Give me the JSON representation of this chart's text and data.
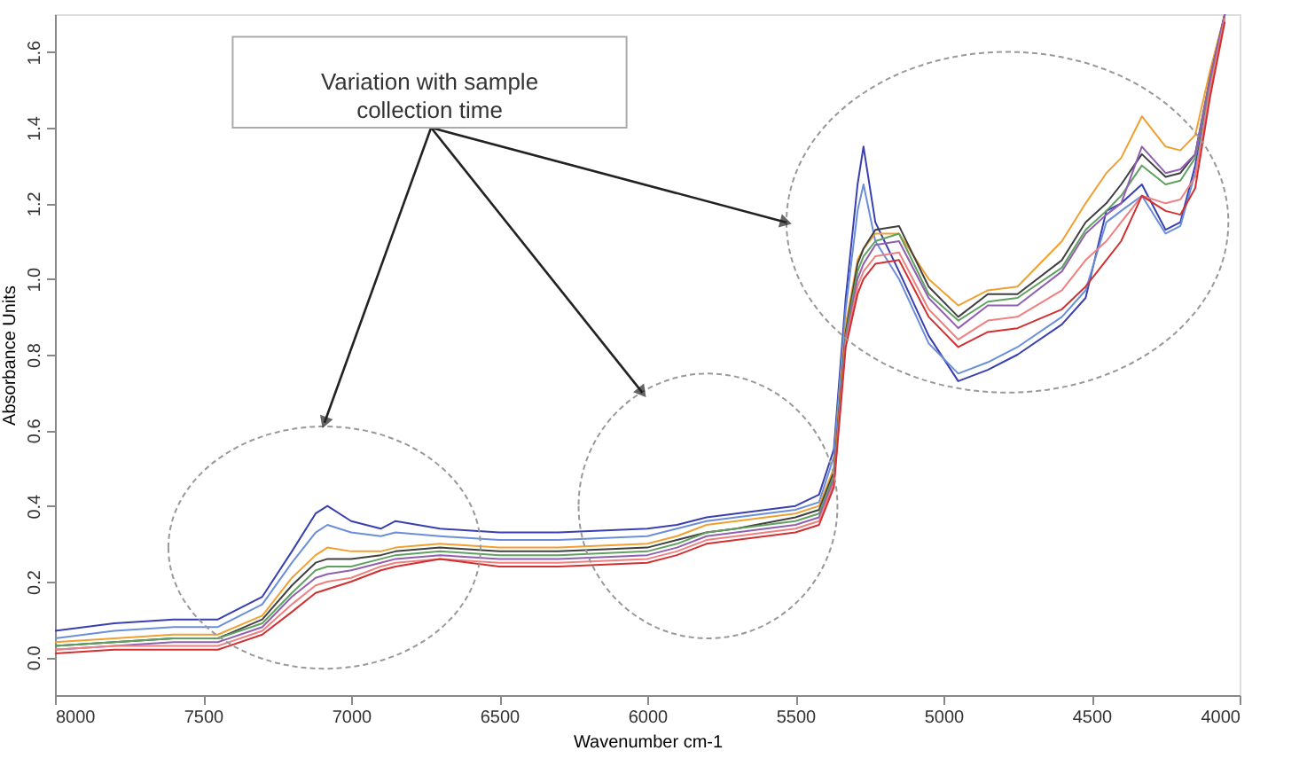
{
  "chart_data": {
    "type": "line",
    "xlabel": "Wavenumber cm-1",
    "ylabel": "Absorbance Units",
    "annotations": [
      "Variation with sample\ncollection time"
    ],
    "x": [
      8000,
      7800,
      7600,
      7450,
      7300,
      7200,
      7120,
      7080,
      7000,
      6900,
      6850,
      6700,
      6500,
      6300,
      6000,
      5900,
      5800,
      5700,
      5500,
      5420,
      5370,
      5330,
      5290,
      5270,
      5230,
      5150,
      5050,
      4950,
      4850,
      4750,
      4600,
      4520,
      4450,
      4400,
      4330,
      4250,
      4200,
      4150,
      4100,
      4050
    ],
    "xlim": [
      8000,
      4000
    ],
    "xticks": [
      8000,
      7500,
      7000,
      6500,
      6000,
      5500,
      5000,
      4500,
      4000
    ],
    "ylim": [
      -0.1,
      1.7
    ],
    "yticks": [
      {
        "value": 0,
        "label": "0.0"
      },
      0.2,
      0.4,
      0.6,
      0.8,
      {
        "value": 1,
        "label": "1.0"
      },
      1.2,
      1.4,
      1.6
    ],
    "grid": false,
    "legend": false,
    "marker": "none",
    "line_style": "solid",
    "series": [
      {
        "color": "#3a3fb0",
        "values": [
          0.07,
          0.09,
          0.1,
          0.1,
          0.16,
          0.28,
          0.38,
          0.4,
          0.36,
          0.34,
          0.36,
          0.34,
          0.33,
          0.33,
          0.34,
          0.35,
          0.37,
          0.38,
          0.4,
          0.43,
          0.55,
          0.95,
          1.25,
          1.35,
          1.15,
          1.02,
          0.85,
          0.73,
          0.76,
          0.8,
          0.88,
          0.95,
          1.18,
          1.2,
          1.25,
          1.13,
          1.15,
          1.3,
          1.52,
          1.7
        ]
      },
      {
        "color": "#6a8fd8",
        "values": [
          0.05,
          0.07,
          0.08,
          0.08,
          0.14,
          0.25,
          0.33,
          0.35,
          0.33,
          0.32,
          0.33,
          0.32,
          0.31,
          0.31,
          0.32,
          0.34,
          0.36,
          0.37,
          0.39,
          0.41,
          0.53,
          0.92,
          1.18,
          1.25,
          1.1,
          1.0,
          0.83,
          0.75,
          0.78,
          0.82,
          0.9,
          0.97,
          1.15,
          1.18,
          1.22,
          1.12,
          1.14,
          1.28,
          1.5,
          1.69
        ]
      },
      {
        "color": "#f0a030",
        "values": [
          0.04,
          0.05,
          0.06,
          0.06,
          0.11,
          0.21,
          0.27,
          0.29,
          0.28,
          0.28,
          0.29,
          0.3,
          0.29,
          0.29,
          0.3,
          0.32,
          0.35,
          0.36,
          0.38,
          0.4,
          0.5,
          0.88,
          1.05,
          1.08,
          1.12,
          1.12,
          1.0,
          0.93,
          0.97,
          0.98,
          1.1,
          1.2,
          1.28,
          1.32,
          1.43,
          1.35,
          1.34,
          1.38,
          1.55,
          1.7
        ]
      },
      {
        "color": "#404040",
        "values": [
          0.03,
          0.04,
          0.05,
          0.05,
          0.1,
          0.19,
          0.25,
          0.26,
          0.26,
          0.27,
          0.28,
          0.29,
          0.28,
          0.28,
          0.29,
          0.31,
          0.33,
          0.34,
          0.37,
          0.39,
          0.49,
          0.86,
          1.04,
          1.08,
          1.13,
          1.14,
          0.98,
          0.9,
          0.96,
          0.96,
          1.05,
          1.15,
          1.2,
          1.25,
          1.33,
          1.27,
          1.28,
          1.33,
          1.53,
          1.7
        ]
      },
      {
        "color": "#60a060",
        "values": [
          0.03,
          0.04,
          0.05,
          0.05,
          0.09,
          0.17,
          0.23,
          0.24,
          0.24,
          0.26,
          0.27,
          0.28,
          0.27,
          0.27,
          0.28,
          0.3,
          0.33,
          0.34,
          0.36,
          0.38,
          0.48,
          0.85,
          1.02,
          1.06,
          1.1,
          1.12,
          0.96,
          0.89,
          0.94,
          0.95,
          1.03,
          1.13,
          1.18,
          1.22,
          1.3,
          1.25,
          1.26,
          1.32,
          1.52,
          1.7
        ]
      },
      {
        "color": "#9060b0",
        "values": [
          0.02,
          0.03,
          0.04,
          0.04,
          0.08,
          0.16,
          0.21,
          0.22,
          0.23,
          0.25,
          0.26,
          0.27,
          0.26,
          0.26,
          0.27,
          0.29,
          0.32,
          0.33,
          0.35,
          0.37,
          0.47,
          0.84,
          1.0,
          1.04,
          1.09,
          1.1,
          0.95,
          0.87,
          0.93,
          0.93,
          1.02,
          1.12,
          1.17,
          1.2,
          1.35,
          1.28,
          1.29,
          1.33,
          1.53,
          1.7
        ]
      },
      {
        "color": "#f08080",
        "values": [
          0.02,
          0.03,
          0.03,
          0.03,
          0.07,
          0.14,
          0.19,
          0.2,
          0.21,
          0.24,
          0.25,
          0.26,
          0.25,
          0.25,
          0.26,
          0.28,
          0.31,
          0.32,
          0.34,
          0.36,
          0.46,
          0.83,
          0.98,
          1.02,
          1.06,
          1.07,
          0.92,
          0.84,
          0.89,
          0.9,
          0.97,
          1.05,
          1.1,
          1.15,
          1.22,
          1.2,
          1.21,
          1.27,
          1.5,
          1.69
        ]
      },
      {
        "color": "#d03030",
        "values": [
          0.01,
          0.02,
          0.02,
          0.02,
          0.06,
          0.12,
          0.17,
          0.18,
          0.2,
          0.23,
          0.24,
          0.26,
          0.24,
          0.24,
          0.25,
          0.27,
          0.3,
          0.31,
          0.33,
          0.35,
          0.45,
          0.82,
          0.96,
          1.0,
          1.04,
          1.05,
          0.9,
          0.82,
          0.86,
          0.87,
          0.92,
          0.98,
          1.05,
          1.1,
          1.22,
          1.18,
          1.17,
          1.24,
          1.48,
          1.68
        ]
      }
    ]
  }
}
